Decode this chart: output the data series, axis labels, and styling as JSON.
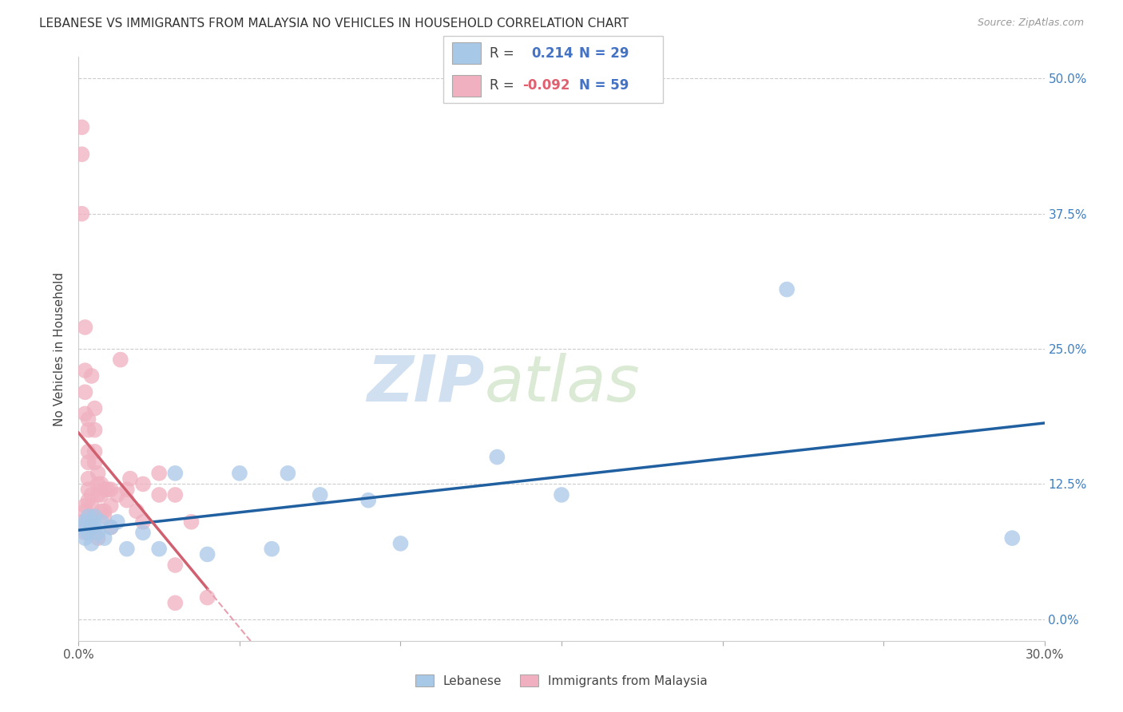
{
  "title": "LEBANESE VS IMMIGRANTS FROM MALAYSIA NO VEHICLES IN HOUSEHOLD CORRELATION CHART",
  "source": "Source: ZipAtlas.com",
  "ylabel": "No Vehicles in Household",
  "ytick_vals": [
    0.0,
    0.125,
    0.25,
    0.375,
    0.5
  ],
  "ytick_labels": [
    "0.0%",
    "12.5%",
    "25.0%",
    "37.5%",
    "50.0%"
  ],
  "xlim": [
    0.0,
    0.3
  ],
  "ylim": [
    -0.02,
    0.52
  ],
  "x_left_label": "0.0%",
  "x_right_label": "30.0%",
  "scatter_blue_color": "#a8c8e8",
  "scatter_pink_color": "#f0b0c0",
  "line_blue_color": "#2060a0",
  "line_pink_solid_color": "#d06070",
  "line_pink_dash_color": "#e8a0b0",
  "watermark_zip": "ZIP",
  "watermark_atlas": "atlas",
  "legend_label_blue": "Lebanese",
  "legend_label_pink": "Immigrants from Malaysia",
  "R_blue": "0.214",
  "N_blue": "29",
  "R_pink": "-0.092",
  "N_pink": "59",
  "blue_x": [
    0.001,
    0.002,
    0.002,
    0.003,
    0.003,
    0.004,
    0.004,
    0.005,
    0.005,
    0.006,
    0.007,
    0.008,
    0.01,
    0.012,
    0.015,
    0.02,
    0.025,
    0.03,
    0.04,
    0.05,
    0.06,
    0.065,
    0.075,
    0.09,
    0.1,
    0.13,
    0.15,
    0.22,
    0.29
  ],
  "blue_y": [
    0.085,
    0.09,
    0.075,
    0.095,
    0.08,
    0.085,
    0.07,
    0.085,
    0.095,
    0.08,
    0.09,
    0.075,
    0.085,
    0.09,
    0.065,
    0.08,
    0.065,
    0.135,
    0.06,
    0.135,
    0.065,
    0.135,
    0.115,
    0.11,
    0.07,
    0.15,
    0.115,
    0.305,
    0.075
  ],
  "pink_x": [
    0.001,
    0.001,
    0.001,
    0.001,
    0.002,
    0.002,
    0.002,
    0.002,
    0.002,
    0.002,
    0.003,
    0.003,
    0.003,
    0.003,
    0.003,
    0.003,
    0.003,
    0.004,
    0.004,
    0.004,
    0.004,
    0.004,
    0.004,
    0.005,
    0.005,
    0.005,
    0.005,
    0.005,
    0.006,
    0.006,
    0.006,
    0.006,
    0.007,
    0.007,
    0.007,
    0.008,
    0.008,
    0.008,
    0.009,
    0.01,
    0.01,
    0.01,
    0.012,
    0.013,
    0.015,
    0.015,
    0.016,
    0.018,
    0.02,
    0.02,
    0.025,
    0.025,
    0.03,
    0.03,
    0.03,
    0.035,
    0.04,
    0.002,
    0.003
  ],
  "pink_y": [
    0.455,
    0.43,
    0.375,
    0.09,
    0.27,
    0.23,
    0.21,
    0.19,
    0.105,
    0.08,
    0.185,
    0.175,
    0.155,
    0.145,
    0.13,
    0.12,
    0.09,
    0.115,
    0.105,
    0.095,
    0.085,
    0.225,
    0.085,
    0.195,
    0.175,
    0.155,
    0.145,
    0.08,
    0.135,
    0.125,
    0.115,
    0.075,
    0.125,
    0.115,
    0.1,
    0.12,
    0.1,
    0.095,
    0.12,
    0.12,
    0.105,
    0.085,
    0.115,
    0.24,
    0.12,
    0.11,
    0.13,
    0.1,
    0.125,
    0.09,
    0.135,
    0.115,
    0.05,
    0.015,
    0.115,
    0.09,
    0.02,
    0.1,
    0.11
  ]
}
